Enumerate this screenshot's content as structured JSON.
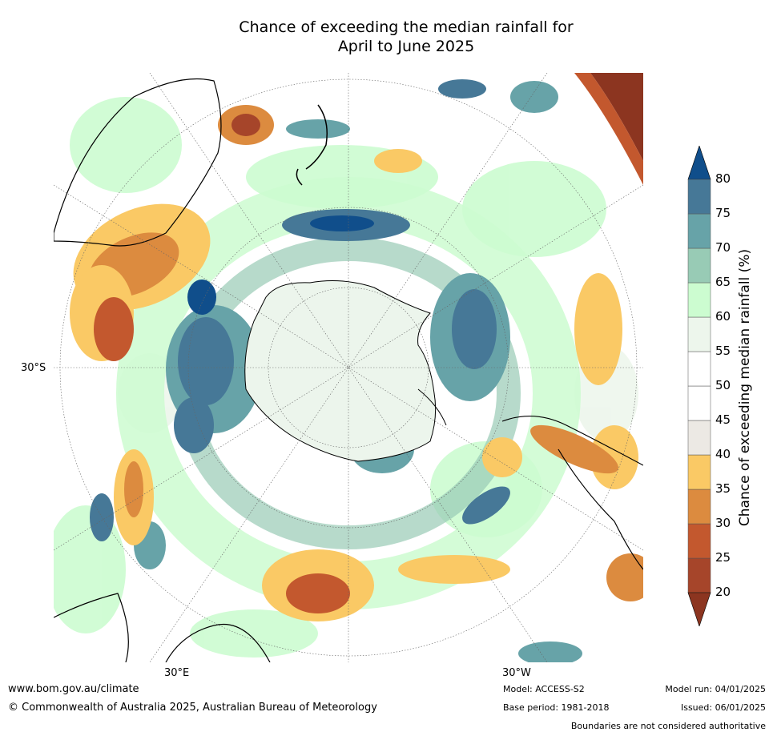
{
  "title": {
    "line1": "Chance of exceeding the median rainfall for",
    "line2": "April to June 2025"
  },
  "map": {
    "projection": "south-polar-stereographic",
    "lat_labels": [
      "30°S"
    ],
    "lon_labels": [
      "30°E",
      "30°W"
    ]
  },
  "colorbar": {
    "title": "Chance of exceeding median rainfall (%)",
    "ticks": [
      "20",
      "25",
      "30",
      "35",
      "40",
      "45",
      "50",
      "55",
      "60",
      "65",
      "70",
      "75",
      "80"
    ],
    "colors": [
      "#a6452a",
      "#c3582e",
      "#dc8b3f",
      "#fac965",
      "#ece9e4",
      "#ffffff",
      "#ffffff",
      "#edf6ec",
      "#ccfcd0",
      "#98cbb5",
      "#67a3a8",
      "#467897"
    ],
    "under_color": "#8c3520",
    "over_color": "#104e8b"
  },
  "footer": {
    "website": "www.bom.gov.au/climate",
    "copyright": "© Commonwealth of Australia 2025, Australian Bureau of Meteorology",
    "model": "Model: ACCESS-S2",
    "base_period": "Base period: 1981-2018",
    "model_run": "Model run: 04/01/2025",
    "issued": "Issued: 06/01/2025",
    "disclaimer": "Boundaries are not considered authoritative"
  }
}
